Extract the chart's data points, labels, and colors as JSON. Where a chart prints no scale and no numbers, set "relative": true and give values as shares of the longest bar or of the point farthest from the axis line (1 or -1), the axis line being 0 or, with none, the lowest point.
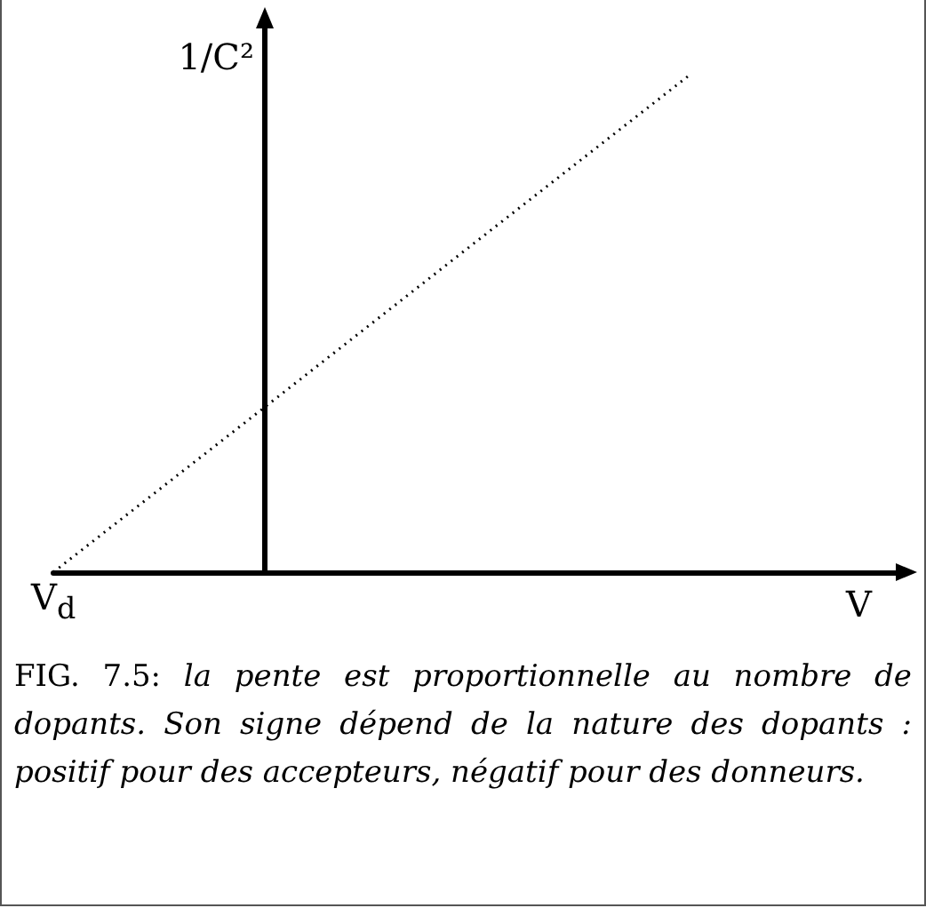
{
  "chart_data": {
    "type": "line",
    "relative": true,
    "xlabel": "V",
    "ylabel": "1/C²",
    "categories": [
      null,
      null,
      null,
      null,
      null
    ],
    "series": [
      {
        "color": "#000000",
        "values": [
          0,
          0.333,
          0.667,
          1,
          null
        ]
      }
    ],
    "line_style": "dotted",
    "marker": "none",
    "grid": false,
    "annotations": [
      {
        "text": "V$_{d}$",
        "y": 0
      },
      "FIG. 7.5: la pente est proportionnelle au nombre de dopants. Son signe dépend de la nature des dopants : positif pour des accepteurs, négatif pour des donneurs."
    ]
  }
}
